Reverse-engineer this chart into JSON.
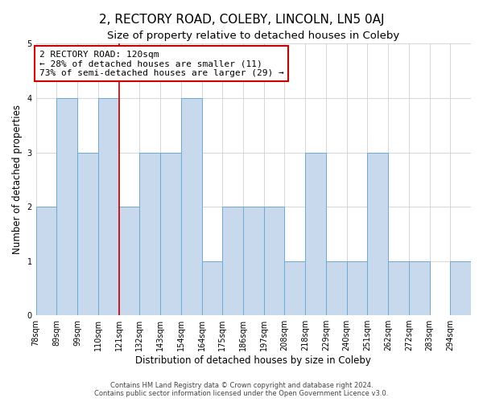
{
  "title": "2, RECTORY ROAD, COLEBY, LINCOLN, LN5 0AJ",
  "subtitle": "Size of property relative to detached houses in Coleby",
  "xlabel": "Distribution of detached houses by size in Coleby",
  "ylabel": "Number of detached properties",
  "bin_labels": [
    "78sqm",
    "89sqm",
    "99sqm",
    "110sqm",
    "121sqm",
    "132sqm",
    "143sqm",
    "154sqm",
    "164sqm",
    "175sqm",
    "186sqm",
    "197sqm",
    "208sqm",
    "218sqm",
    "229sqm",
    "240sqm",
    "251sqm",
    "262sqm",
    "272sqm",
    "283sqm",
    "294sqm"
  ],
  "bar_heights": [
    2,
    4,
    3,
    4,
    2,
    3,
    3,
    4,
    1,
    2,
    2,
    2,
    1,
    3,
    1,
    1,
    3,
    1,
    1,
    0,
    1
  ],
  "bar_color": "#c8d9ee",
  "bar_edge_color": "#6aaad4",
  "vline_index": 4,
  "vline_color": "#cc0000",
  "annotation_title": "2 RECTORY ROAD: 120sqm",
  "annotation_line1": "← 28% of detached houses are smaller (11)",
  "annotation_line2": "73% of semi-detached houses are larger (29) →",
  "annotation_box_facecolor": "#ffffff",
  "annotation_box_edgecolor": "#cc0000",
  "ylim": [
    0,
    5
  ],
  "yticks": [
    0,
    1,
    2,
    3,
    4,
    5
  ],
  "background_color": "#ffffff",
  "grid_color": "#d0d0d0",
  "title_fontsize": 11,
  "subtitle_fontsize": 9.5,
  "axis_label_fontsize": 8.5,
  "tick_fontsize": 7,
  "annotation_fontsize": 8,
  "footer_line1": "Contains HM Land Registry data © Crown copyright and database right 2024.",
  "footer_line2": "Contains public sector information licensed under the Open Government Licence v3.0.",
  "footer_fontsize": 6
}
